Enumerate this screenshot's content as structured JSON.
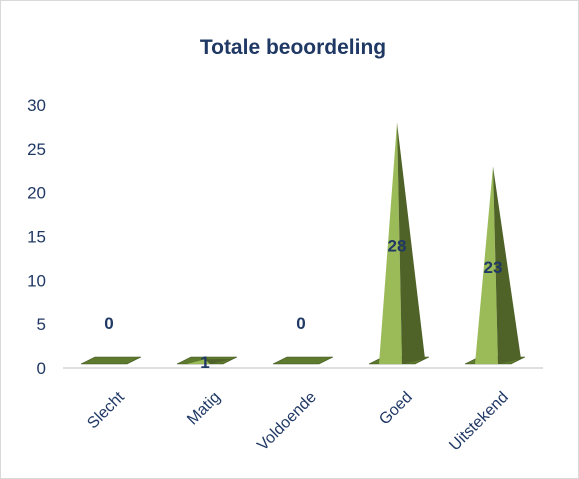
{
  "chart_data": {
    "type": "bar",
    "title": "Totale beoordeling",
    "categories": [
      "Slecht",
      "Matig",
      "Voldoende",
      "Goed",
      "Uitstekend"
    ],
    "values": [
      0,
      1,
      0,
      28,
      23
    ],
    "data_labels": [
      "0",
      "1",
      "0",
      "28",
      "23"
    ],
    "ylim": [
      0,
      30
    ],
    "yticks": [
      "0",
      "5",
      "10",
      "15",
      "20",
      "25",
      "30"
    ],
    "xlabel": "",
    "ylabel": "",
    "grid": false,
    "legend": "none",
    "colors": {
      "light": "#9bbb59",
      "dark": "#4f6228",
      "base": "#5e7a2e",
      "axis": "#bfbfbf",
      "text": "#1f3864"
    }
  }
}
